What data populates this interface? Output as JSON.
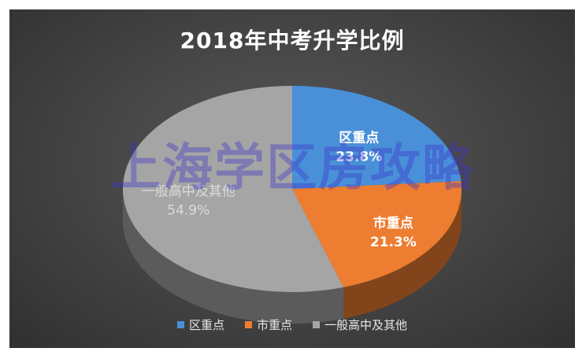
{
  "chart_data": {
    "type": "pie",
    "title": "2018年中考升学比例",
    "categories": [
      "区重点",
      "市重点",
      "一般高中及其他"
    ],
    "values": [
      23.8,
      21.3,
      54.9
    ],
    "value_labels": [
      "23.8%",
      "21.3%",
      "54.9%"
    ],
    "colors": [
      "#4A90D9",
      "#ED7D31",
      "#A5A5A5"
    ],
    "legend_position": "bottom",
    "style": "3d"
  },
  "watermark": "上海学区房攻略"
}
